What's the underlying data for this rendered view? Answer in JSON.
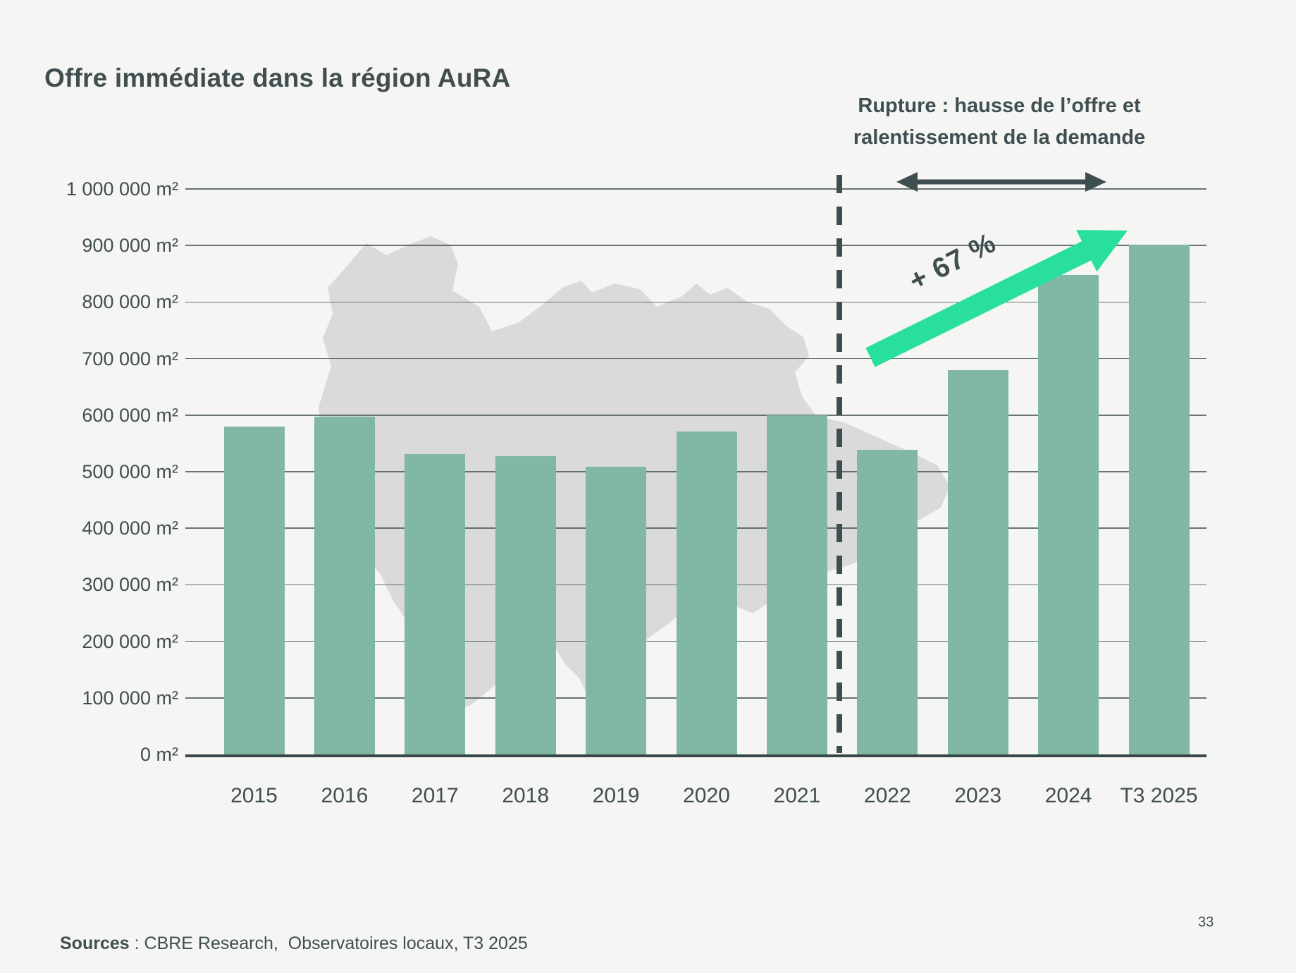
{
  "page": {
    "title": "Offre immédiate dans la région AuRA",
    "sources_label": "Sources",
    "sources_rest": " : CBRE Research,  Observatoires locaux, T3 2025",
    "page_number": "33"
  },
  "annotation": {
    "line1": "Rupture : hausse de l’offre et",
    "line2": "ralentissement de la demande",
    "growth_label": "+ 67 %"
  },
  "chart_data": {
    "type": "bar",
    "title": "Offre immédiate dans la région AuRA",
    "unit": "m²",
    "categories": [
      "2015",
      "2016",
      "2017",
      "2018",
      "2019",
      "2020",
      "2021",
      "2022",
      "2023",
      "2024",
      "T3 2025"
    ],
    "values": [
      580000,
      597000,
      531000,
      527000,
      509000,
      571000,
      600000,
      539000,
      679000,
      848000,
      901000
    ],
    "ylim": [
      0,
      1000000
    ],
    "ytick_step": 100000,
    "ytick_labels": [
      "0 m²",
      "100 000 m²",
      "200 000 m²",
      "300 000 m²",
      "400 000 m²",
      "500 000 m²",
      "600 000 m²",
      "700 000 m²",
      "800 000 m²",
      "900 000 m²",
      "1 000 000 m²"
    ],
    "grid": "horizontal",
    "dashed_separator_after_category": "2021",
    "growth_annotation": {
      "from_category": "2022",
      "to_category": "T3 2025",
      "label": "+ 67 %"
    },
    "colors": {
      "bar": "#80b7a5",
      "background": "#f5f5f3",
      "map_silhouette": "#dadada",
      "gridline": "#4d5c5e",
      "axis": "#37474a",
      "text": "#414e50",
      "growth_arrow": "#29df9c",
      "dashed_line": "#3d4d50"
    }
  }
}
